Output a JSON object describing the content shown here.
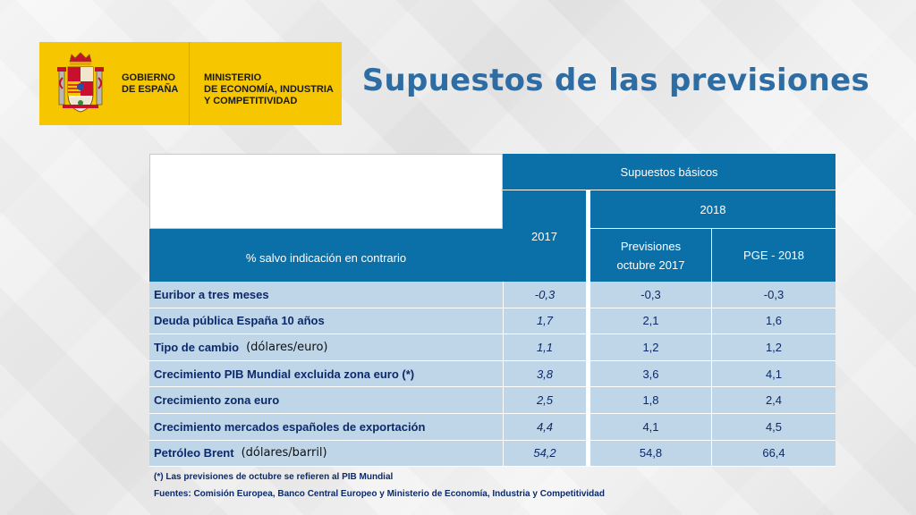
{
  "logo": {
    "government": [
      "GOBIERNO",
      "DE ESPAÑA"
    ],
    "ministry": [
      "MINISTERIO",
      "DE ECONOMÍA, INDUSTRIA",
      "Y COMPETITIVIDAD"
    ]
  },
  "title": "Supuestos de las previsiones",
  "table": {
    "group_header": "Supuestos básicos",
    "col_2017": "2017",
    "col_2018": "2018",
    "sub_previsiones": "Previsiones octubre 2017",
    "sub_pge": "PGE - 2018",
    "row_header": "% salvo indicación en contrario",
    "rows": [
      {
        "label": "Euribor a tres meses",
        "unit": "",
        "v2017": "-0,3",
        "prev": "-0,3",
        "pge": "-0,3"
      },
      {
        "label": "Deuda pública España 10 años",
        "unit": "",
        "v2017": "1,7",
        "prev": "2,1",
        "pge": "1,6"
      },
      {
        "label": "Tipo de cambio",
        "unit": "(dólares/euro)",
        "v2017": "1,1",
        "prev": "1,2",
        "pge": "1,2"
      },
      {
        "label": "Crecimiento PIB Mundial excluida  zona euro (*)",
        "unit": "",
        "v2017": "3,8",
        "prev": "3,6",
        "pge": "4,1"
      },
      {
        "label": "Crecimiento zona euro",
        "unit": "",
        "v2017": "2,5",
        "prev": "1,8",
        "pge": "2,4"
      },
      {
        "label": "Crecimiento mercados españoles de exportación",
        "unit": "",
        "v2017": "4,4",
        "prev": "4,1",
        "pge": "4,5"
      },
      {
        "label": "Petróleo Brent",
        "unit": "(dólares/barril)",
        "v2017": "54,2",
        "prev": "54,8",
        "pge": "66,4"
      }
    ]
  },
  "footnote": "(*) Las previsiones de octubre se refieren al PIB Mundial",
  "sources": "Fuentes: Comisión Europea, Banco Central Europeo y Ministerio de Economía, Industria y Competitividad",
  "colors": {
    "header_blue": "#0b70a8",
    "row_blue": "#bfd5e8",
    "logo_yellow": "#f6c600",
    "title_blue": "#2e6da4"
  }
}
